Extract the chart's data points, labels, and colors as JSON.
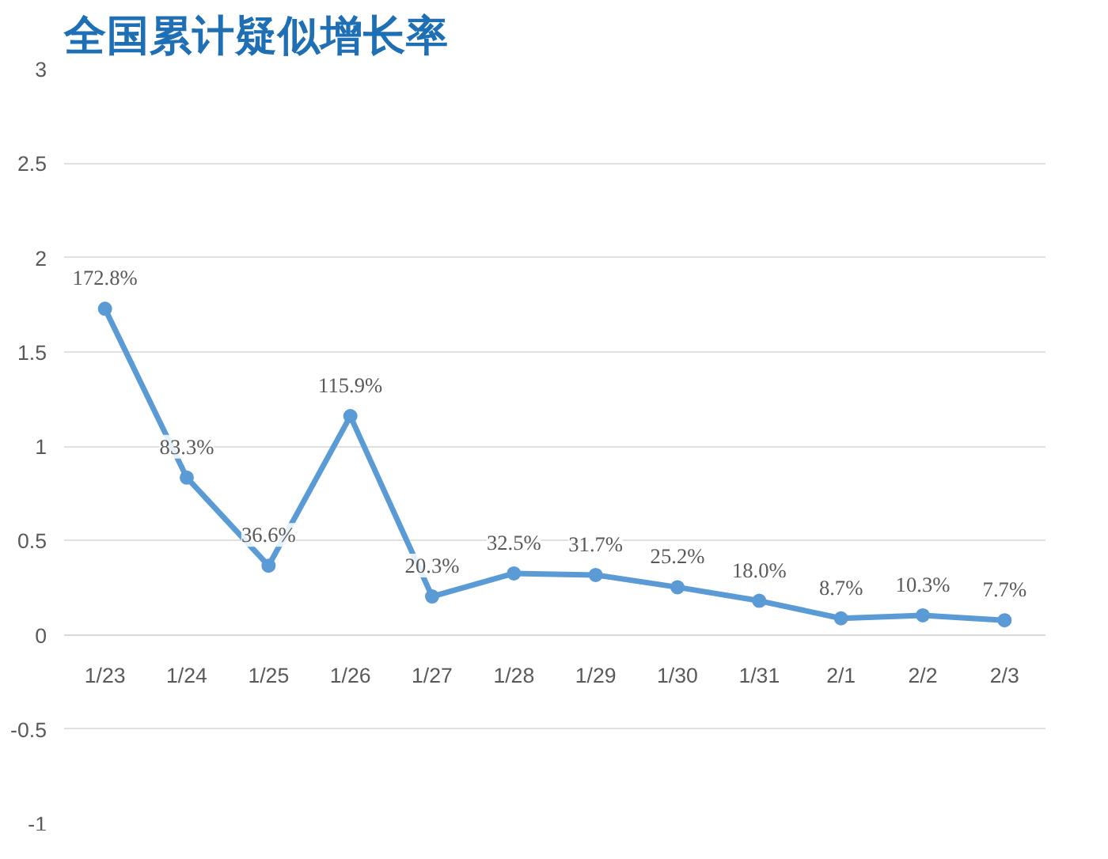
{
  "chart_data": {
    "type": "line",
    "title": "全国累计疑似增长率",
    "categories": [
      "1/23",
      "1/24",
      "1/25",
      "1/26",
      "1/27",
      "1/28",
      "1/29",
      "1/30",
      "1/31",
      "2/1",
      "2/2",
      "2/3"
    ],
    "series": [
      {
        "color": "#5b9bd5",
        "values": [
          1.728,
          0.833,
          0.366,
          1.159,
          0.203,
          0.325,
          0.317,
          0.252,
          0.18,
          0.087,
          0.103,
          0.077
        ],
        "value_labels": [
          "172.8%",
          "83.3%",
          "36.6%",
          "115.9%",
          "20.3%",
          "32.5%",
          "31.7%",
          "25.2%",
          "18.0%",
          "8.7%",
          "10.3%",
          "7.7%"
        ]
      }
    ],
    "ylim": [
      -1,
      3
    ],
    "yticks": [
      -1,
      -0.5,
      0,
      0.5,
      1,
      1.5,
      2,
      2.5,
      3
    ],
    "grid": "y",
    "marker": "circle",
    "line_style": "solid"
  }
}
